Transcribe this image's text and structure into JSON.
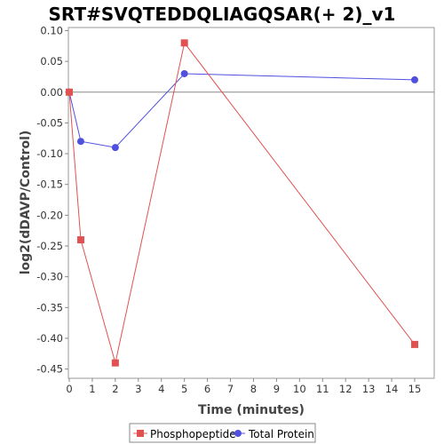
{
  "chart_data": {
    "type": "line",
    "title": "SRT#SVQTEDDQLIAGQSAR(+ 2)_v1",
    "xlabel": "Time (minutes)",
    "ylabel": "log2(dDAVP/Control)",
    "xlim": [
      0,
      16
    ],
    "ylim": [
      -0.465,
      0.105
    ],
    "xticks": [
      "0",
      "1",
      "2",
      "3",
      "4",
      "5",
      "6",
      "7",
      "8",
      "9",
      "10",
      "11",
      "12",
      "13",
      "14",
      "15"
    ],
    "yticks": [
      "0.10",
      "0.05",
      "0.00",
      "-0.05",
      "-0.10",
      "-0.15",
      "-0.20",
      "-0.25",
      "-0.30",
      "-0.35",
      "-0.40",
      "-0.45"
    ],
    "grid": false,
    "legend_position": "bottom-center",
    "series": [
      {
        "name": "Phosphopeptide",
        "color": "#e05252",
        "marker": "square",
        "x": [
          0,
          0.5,
          2,
          5,
          15
        ],
        "y": [
          0.0,
          -0.24,
          -0.44,
          0.08,
          -0.41
        ]
      },
      {
        "name": "Total Protein",
        "color": "#5050e0",
        "marker": "circle",
        "x": [
          0,
          0.5,
          2,
          5,
          15
        ],
        "y": [
          0.0,
          -0.08,
          -0.09,
          0.03,
          0.02
        ]
      }
    ]
  }
}
